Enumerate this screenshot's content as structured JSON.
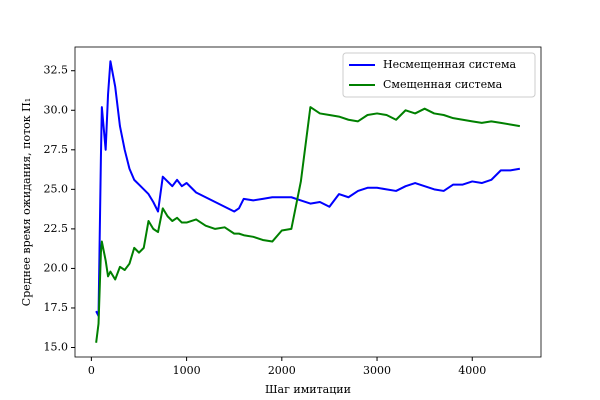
{
  "chart_data": {
    "type": "line",
    "xlabel": "Шаг имитации",
    "ylabel": "Среднее время ожидания, поток Π₁",
    "x": [
      50,
      75,
      100,
      110,
      150,
      175,
      200,
      250,
      300,
      350,
      400,
      450,
      500,
      550,
      600,
      650,
      700,
      750,
      800,
      850,
      900,
      950,
      1000,
      1100,
      1200,
      1300,
      1400,
      1500,
      1550,
      1600,
      1700,
      1800,
      1900,
      2000,
      2100,
      2200,
      2300,
      2400,
      2500,
      2600,
      2700,
      2800,
      2900,
      3000,
      3100,
      3200,
      3300,
      3400,
      3500,
      3600,
      3700,
      3800,
      3900,
      4000,
      4100,
      4200,
      4300,
      4400,
      4500
    ],
    "series": [
      {
        "name": "Несмещенная система",
        "color": "#0000ff",
        "values": [
          17.3,
          17.0,
          27.0,
          30.2,
          27.5,
          31.0,
          33.1,
          31.5,
          29.0,
          27.5,
          26.3,
          25.6,
          25.3,
          25.0,
          24.7,
          24.2,
          23.6,
          25.8,
          25.5,
          25.2,
          25.6,
          25.2,
          25.4,
          24.8,
          24.5,
          24.2,
          23.9,
          23.6,
          23.8,
          24.4,
          24.3,
          24.4,
          24.5,
          24.5,
          24.5,
          24.3,
          24.1,
          24.2,
          23.9,
          24.7,
          24.5,
          24.9,
          25.1,
          25.1,
          25.0,
          24.9,
          25.2,
          25.4,
          25.2,
          25.0,
          24.9,
          25.3,
          25.3,
          25.5,
          25.4,
          25.6,
          26.2,
          26.2,
          26.3
        ]
      },
      {
        "name": "Смещенная система",
        "color": "#008000",
        "values": [
          15.3,
          16.5,
          21.0,
          21.7,
          20.5,
          19.5,
          19.8,
          19.3,
          20.1,
          19.9,
          20.3,
          21.3,
          21.0,
          21.3,
          23.0,
          22.5,
          22.3,
          23.8,
          23.3,
          23.0,
          23.2,
          22.9,
          22.9,
          23.1,
          22.7,
          22.5,
          22.6,
          22.2,
          22.2,
          22.1,
          22.0,
          21.8,
          21.7,
          22.4,
          22.5,
          25.5,
          30.2,
          29.8,
          29.7,
          29.6,
          29.4,
          29.3,
          29.7,
          29.8,
          29.7,
          29.4,
          30.0,
          29.8,
          30.1,
          29.8,
          29.7,
          29.5,
          29.4,
          29.3,
          29.2,
          29.3,
          29.2,
          29.1,
          29.0
        ]
      }
    ],
    "xlim": [
      -172,
      4722
    ],
    "ylim": [
      14.4,
      34.0
    ],
    "xticks": [
      0,
      1000,
      2000,
      3000,
      4000
    ],
    "yticks": [
      {
        "value": 15,
        "label": "15.0"
      },
      17.5,
      {
        "value": 20,
        "label": "20.0"
      },
      22.5,
      {
        "value": 25,
        "label": "25.0"
      },
      27.5,
      {
        "value": 30,
        "label": "30.0"
      },
      32.5
    ],
    "legend": "upper right",
    "grid": false
  }
}
